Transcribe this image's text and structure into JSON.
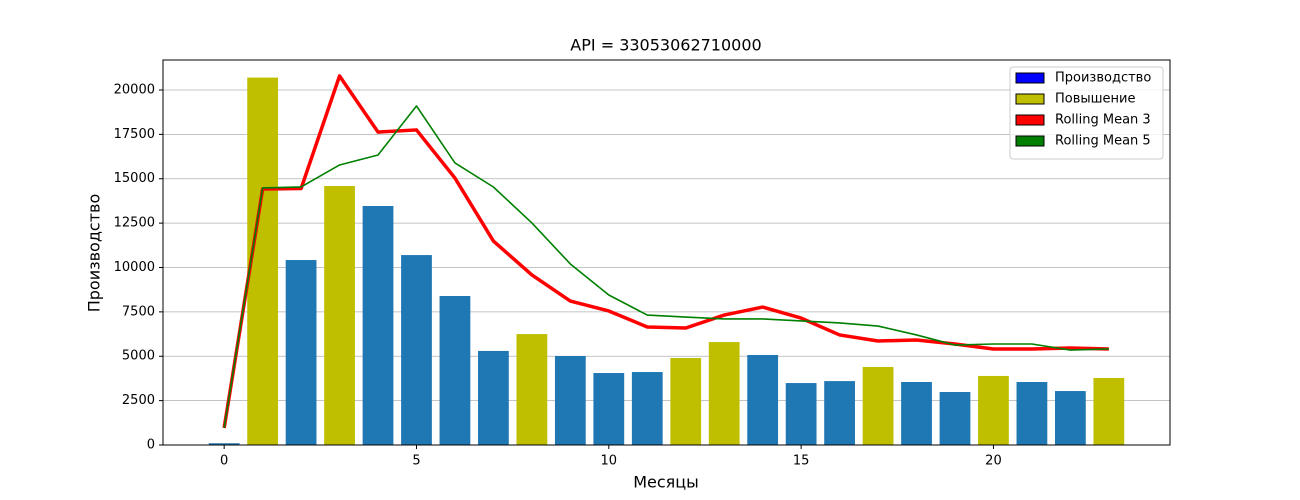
{
  "chart_data": {
    "type": "bar",
    "title": "API = 33053062710000",
    "xlabel": "Месяцы",
    "ylabel": "Производство",
    "x": [
      0,
      1,
      2,
      3,
      4,
      5,
      6,
      7,
      8,
      9,
      10,
      11,
      12,
      13,
      14,
      15,
      16,
      17,
      18,
      19,
      20,
      21,
      22,
      23
    ],
    "xlim": [
      -1.59,
      24.59
    ],
    "xticks": [
      0,
      5,
      10,
      15,
      20
    ],
    "ylim": [
      0,
      21690
    ],
    "yticks": [
      0,
      2500,
      5000,
      7500,
      10000,
      12500,
      15000,
      17500,
      20000
    ],
    "grid": "y",
    "legend_position": "upper-right",
    "bars": {
      "name": "Производство",
      "legend_color": "#0000ff",
      "values": [
        100,
        20700,
        10420,
        14590,
        13465,
        10700,
        8395,
        5300,
        6250,
        5015,
        4055,
        4110,
        4900,
        5800,
        5070,
        3490,
        3600,
        4395,
        3550,
        2985,
        3890,
        3550,
        3040,
        3775
      ],
      "colors": [
        "#1f77b4",
        "#bfbf00",
        "#1f77b4",
        "#bfbf00",
        "#1f77b4",
        "#1f77b4",
        "#1f77b4",
        "#1f77b4",
        "#bfbf00",
        "#1f77b4",
        "#1f77b4",
        "#1f77b4",
        "#bfbf00",
        "#bfbf00",
        "#1f77b4",
        "#1f77b4",
        "#1f77b4",
        "#bfbf00",
        "#1f77b4",
        "#1f77b4",
        "#bfbf00",
        "#1f77b4",
        "#1f77b4",
        "#bfbf00"
      ]
    },
    "highlight": {
      "name": "Повышение",
      "color": "#bfbf00"
    },
    "series": [
      {
        "name": "Rolling Mean 3",
        "color": "#ff0000",
        "width": 3.5,
        "values": [
          960,
          14420,
          14450,
          20790,
          17630,
          17750,
          15040,
          11490,
          9580,
          8110,
          7550,
          6650,
          6590,
          7320,
          7770,
          7150,
          6200,
          5860,
          5915,
          5690,
          5410,
          5410,
          5465,
          5410
        ]
      },
      {
        "name": "Rolling Mean 5",
        "color": "#008000",
        "width": 1.6,
        "values": [
          960,
          14480,
          14540,
          15775,
          16340,
          19100,
          15890,
          14535,
          12510,
          10200,
          8450,
          7320,
          7210,
          7100,
          7100,
          6990,
          6875,
          6700,
          6200,
          5630,
          5690,
          5690,
          5350,
          5410
        ]
      }
    ]
  }
}
